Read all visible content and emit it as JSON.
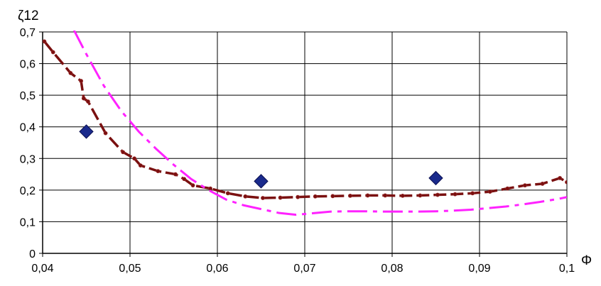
{
  "chart_data": {
    "type": "line",
    "title": "",
    "xlabel": "Φ",
    "ylabel": "ζ12",
    "xlim": [
      0.04,
      0.1
    ],
    "ylim": [
      0,
      0.7
    ],
    "xticks": [
      0.04,
      0.05,
      0.06,
      0.07,
      0.08,
      0.09,
      0.1
    ],
    "xtick_labels": [
      "0,04",
      "0,05",
      "0,06",
      "0,07",
      "0,08",
      "0,09",
      "0,1"
    ],
    "yticks": [
      0,
      0.1,
      0.2,
      0.3,
      0.4,
      0.5,
      0.6,
      0.7
    ],
    "ytick_labels": [
      "0",
      "0,1",
      "0,2",
      "0,3",
      "0,4",
      "0,5",
      "0,6",
      "0,7"
    ],
    "grid": true,
    "legend": "none",
    "series": [
      {
        "type": "line",
        "style": "dashed-with-markers",
        "color": "#7a1010",
        "x": [
          0.0402,
          0.0412,
          0.0432,
          0.0444,
          0.0447,
          0.0452,
          0.0472,
          0.0492,
          0.0505,
          0.0512,
          0.0532,
          0.0552,
          0.0562,
          0.0572,
          0.0592,
          0.0612,
          0.0632,
          0.0652,
          0.0672,
          0.0692,
          0.0712,
          0.0732,
          0.0752,
          0.0772,
          0.0792,
          0.0812,
          0.0832,
          0.0852,
          0.0872,
          0.0892,
          0.0912,
          0.0932,
          0.0952,
          0.0972,
          0.0992,
          0.1
        ],
        "y": [
          0.67,
          0.636,
          0.57,
          0.545,
          0.49,
          0.48,
          0.38,
          0.32,
          0.3,
          0.278,
          0.26,
          0.25,
          0.235,
          0.215,
          0.205,
          0.19,
          0.18,
          0.175,
          0.176,
          0.178,
          0.18,
          0.181,
          0.182,
          0.183,
          0.183,
          0.182,
          0.183,
          0.185,
          0.187,
          0.19,
          0.195,
          0.205,
          0.215,
          0.22,
          0.238,
          0.225
        ]
      },
      {
        "type": "line",
        "style": "dash-dot",
        "color": "#ff22ff",
        "x": [
          0.0436,
          0.045,
          0.047,
          0.049,
          0.051,
          0.053,
          0.055,
          0.057,
          0.059,
          0.061,
          0.063,
          0.065,
          0.067,
          0.069,
          0.071,
          0.073,
          0.075,
          0.077,
          0.079,
          0.081,
          0.083,
          0.085,
          0.087,
          0.089,
          0.091,
          0.093,
          0.095,
          0.097,
          0.099,
          0.1
        ],
        "y": [
          0.705,
          0.63,
          0.53,
          0.45,
          0.385,
          0.33,
          0.28,
          0.235,
          0.2,
          0.17,
          0.152,
          0.14,
          0.128,
          0.122,
          0.127,
          0.132,
          0.133,
          0.133,
          0.132,
          0.132,
          0.132,
          0.133,
          0.135,
          0.138,
          0.143,
          0.148,
          0.155,
          0.163,
          0.172,
          0.178
        ]
      },
      {
        "type": "scatter",
        "marker": "diamond",
        "color": "#1a2a8c",
        "x": [
          0.045,
          0.065,
          0.085
        ],
        "y": [
          0.385,
          0.228,
          0.238
        ]
      }
    ]
  }
}
